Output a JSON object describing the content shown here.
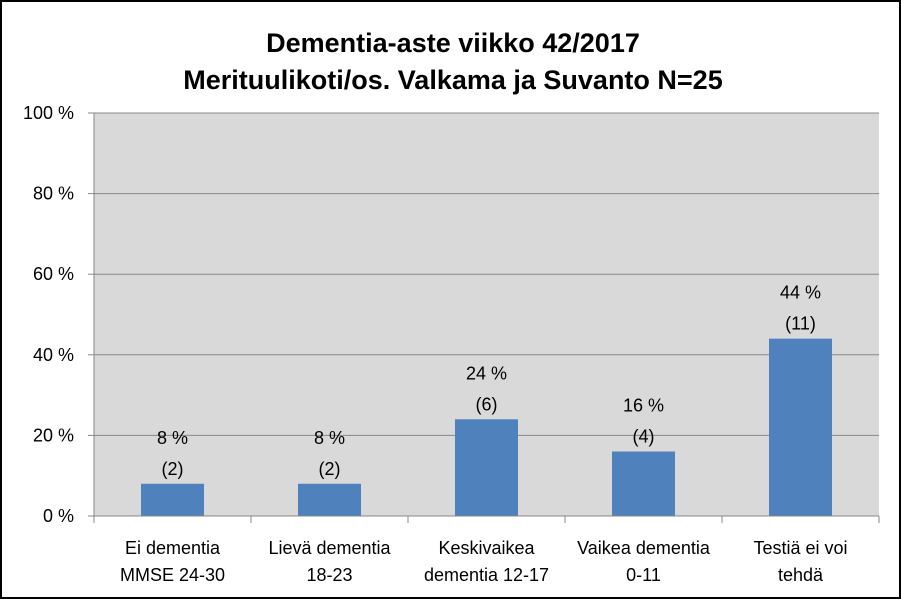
{
  "chart_data": {
    "type": "bar",
    "title_lines": [
      "Dementia-aste viikko 42/2017",
      "Merituulikoti/os. Valkama ja Suvanto   N=25"
    ],
    "categories": [
      [
        "Ei dementia",
        "MMSE 24-30"
      ],
      [
        "Lievä dementia",
        "18-23"
      ],
      [
        "Keskivaikea",
        "dementia 12-17"
      ],
      [
        "Vaikea dementia",
        "0-11"
      ],
      [
        "Testiä ei voi",
        "tehdä"
      ]
    ],
    "values": [
      8,
      8,
      24,
      16,
      44
    ],
    "data_labels": [
      [
        "8 %",
        "(2)"
      ],
      [
        "8 %",
        "(2)"
      ],
      [
        "24 %",
        "(6)"
      ],
      [
        "16 %",
        "(4)"
      ],
      [
        "44 %",
        "(11)"
      ]
    ],
    "y_ticks": [
      {
        "value": 0,
        "label": "0 %"
      },
      {
        "value": 20,
        "label": "20 %"
      },
      {
        "value": 40,
        "label": "40 %"
      },
      {
        "value": 60,
        "label": "60 %"
      },
      {
        "value": 80,
        "label": "80 %"
      },
      {
        "value": 100,
        "label": "100 %"
      }
    ],
    "ylim": [
      0,
      100
    ],
    "grid": true,
    "legend": "none",
    "colors": {
      "bar": "#4F81BD",
      "plot_background": "#D9D9D9",
      "gridline": "#878787",
      "axis": "#878787"
    }
  }
}
